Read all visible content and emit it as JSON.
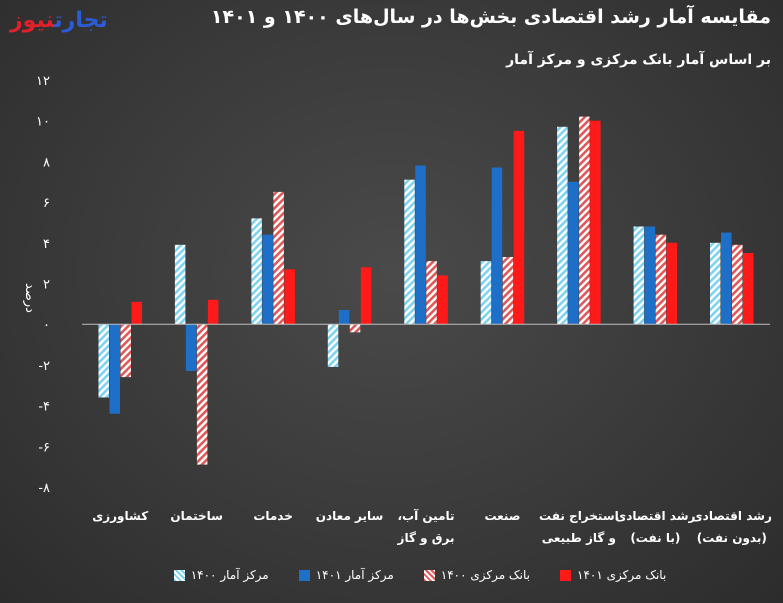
{
  "header": {
    "logo_part1": "تجارت",
    "logo_part2": "نیوز",
    "title": "مقایسه آمار رشد اقتصادی بخش‌ها در سال‌های ۱۴۰۰ و ۱۴۰۱",
    "subtitle": "بر اساس آمار بانک مرکزی و مرکز آمار"
  },
  "chart_data": {
    "type": "bar",
    "ylabel": "درصد",
    "ylim": [
      -8,
      12
    ],
    "y_ticks": [
      {
        "value": -8,
        "label": "-۸"
      },
      {
        "value": -6,
        "label": "-۶"
      },
      {
        "value": -4,
        "label": "-۴"
      },
      {
        "value": -2,
        "label": "-۲"
      },
      {
        "value": 0,
        "label": "۰"
      },
      {
        "value": 2,
        "label": "۲"
      },
      {
        "value": 4,
        "label": "۴"
      },
      {
        "value": 6,
        "label": "۶"
      },
      {
        "value": 8,
        "label": "۸"
      },
      {
        "value": 10,
        "label": "۱۰"
      },
      {
        "value": 12,
        "label": "۱۲"
      }
    ],
    "categories": [
      [
        "کشاورزی"
      ],
      [
        "ساختمان"
      ],
      [
        "خدمات"
      ],
      [
        "سایر معادن"
      ],
      [
        "تامین آب،",
        "برق و گاز"
      ],
      [
        "صنعت"
      ],
      [
        "استخراج نفت",
        "و گاز طبیعی"
      ],
      [
        "رشد اقتصادی",
        "(با نفت)"
      ],
      [
        "رشد اقتصادی",
        "(بدون نفت)"
      ]
    ],
    "series": [
      {
        "name": "مرکز آمار ۱۴۰۰",
        "color": "#7fd3f0",
        "pattern": "hatch",
        "values": [
          -3.6,
          3.9,
          5.2,
          -2.1,
          7.1,
          3.1,
          9.7,
          4.8,
          4.0
        ]
      },
      {
        "name": "مرکز آمار ۱۴۰۱",
        "color": "#1e6fc8",
        "pattern": "solid",
        "values": [
          -4.4,
          -2.3,
          4.4,
          0.7,
          7.8,
          7.7,
          7.0,
          4.8,
          4.5
        ]
      },
      {
        "name": "بانک مرکزی ۱۴۰۰",
        "color": "#e05858",
        "pattern": "hatch",
        "values": [
          -2.6,
          -6.9,
          6.5,
          -0.4,
          3.1,
          3.3,
          10.2,
          4.4,
          3.9
        ]
      },
      {
        "name": "بانک مرکزی ۱۴۰۱",
        "color": "#ff1a1a",
        "pattern": "solid",
        "values": [
          1.1,
          1.2,
          2.7,
          2.8,
          2.4,
          9.5,
          10.0,
          4.0,
          3.5
        ]
      }
    ],
    "grid": false,
    "legend_position": "bottom"
  }
}
